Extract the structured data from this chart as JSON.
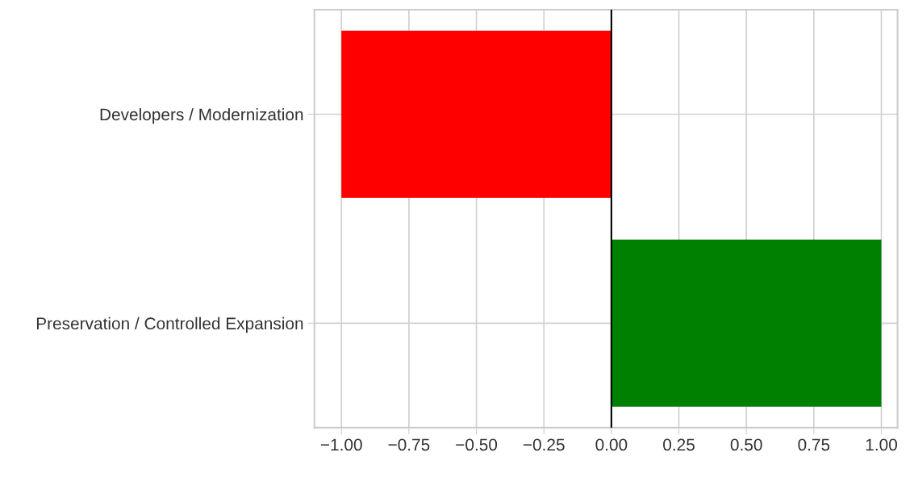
{
  "chart_data": {
    "type": "bar",
    "orientation": "horizontal",
    "categories": [
      "Developers / Modernization",
      "Preservation / Controlled Expansion"
    ],
    "values": [
      -1,
      1
    ],
    "colors": [
      "#ff0000",
      "#008000"
    ],
    "xlim": [
      -1.1,
      1.06
    ],
    "xticks": [
      {
        "value": -1,
        "label": "−1.00"
      },
      {
        "value": -0.75,
        "label": "−0.75"
      },
      {
        "value": -0.5,
        "label": "−0.50"
      },
      {
        "value": -0.25,
        "label": "−0.25"
      },
      {
        "value": 0,
        "label": "0.00"
      },
      {
        "value": 0.25,
        "label": "0.25"
      },
      {
        "value": 0.5,
        "label": "0.50"
      },
      {
        "value": 0.75,
        "label": "0.75"
      },
      {
        "value": 1,
        "label": "1.00"
      }
    ],
    "ref_lines": [
      {
        "axis": "x",
        "value": 0,
        "color": "#000000"
      }
    ],
    "grid": true
  }
}
